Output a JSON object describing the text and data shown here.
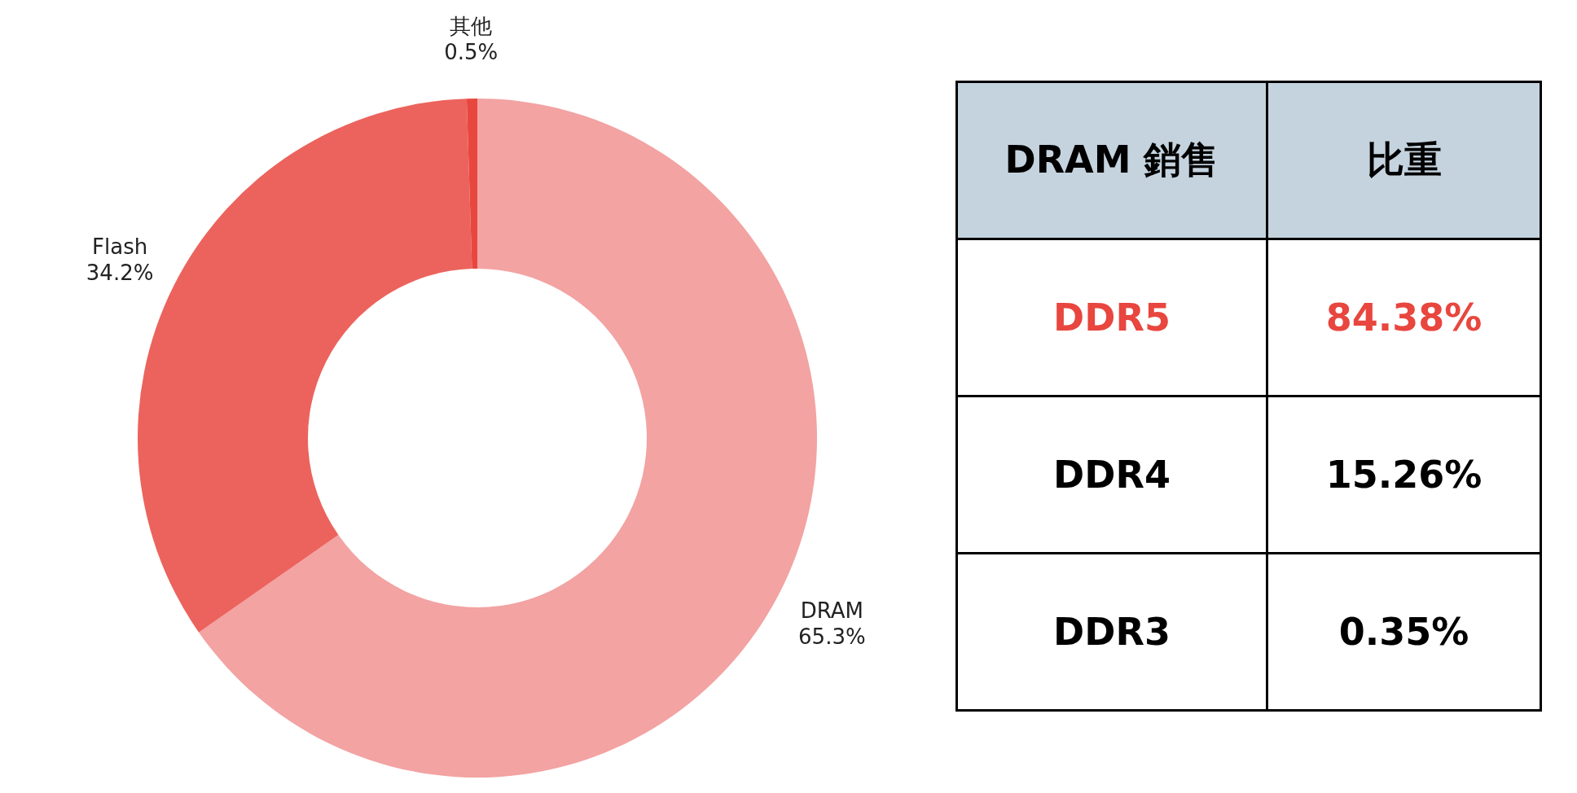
{
  "chart_data": [
    {
      "type": "donut",
      "categories": [
        "DRAM",
        "Flash",
        "其他"
      ],
      "values": [
        65.3,
        34.2,
        0.5
      ],
      "colors": [
        "#f2a3a2",
        "#ec635d",
        "#e8473f"
      ],
      "value_labels": [
        "65.3%",
        "34.2%",
        "0.5%"
      ],
      "legend": false
    },
    {
      "type": "other",
      "xlabel": "DRAM 銷售",
      "ylabel": "比重",
      "categories": [
        "DDR5",
        "DDR4",
        "DDR3"
      ],
      "value_labels": [
        "84.38%",
        "15.26%",
        "0.35%"
      ],
      "colors": [
        "#e8463e",
        "#000000",
        "#000000"
      ],
      "data_labels": true
    }
  ]
}
